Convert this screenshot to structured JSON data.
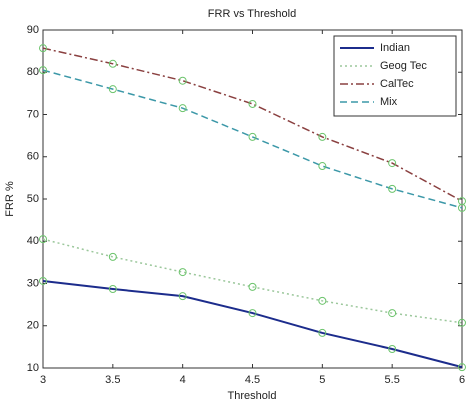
{
  "chart_data": {
    "type": "line",
    "title": "FRR vs Threshold",
    "xlabel": "Threshold",
    "ylabel": "FRR %",
    "x": [
      3,
      3.5,
      4,
      4.5,
      5,
      5.5,
      6
    ],
    "xlim": [
      3,
      6
    ],
    "xticks": [
      3,
      3.5,
      4,
      4.5,
      5,
      5.5,
      6
    ],
    "ylim": [
      10,
      90
    ],
    "yticks": [
      10,
      20,
      30,
      40,
      50,
      60,
      70,
      80,
      90
    ],
    "legend": "top-right",
    "marker_color": "#6cc46c",
    "series": [
      {
        "name": "Indian",
        "color": "#1c2c8c",
        "dash": "none",
        "values": [
          30.6,
          28.7,
          27,
          23,
          18.3,
          14.5,
          10.2
        ]
      },
      {
        "name": "Geog Tec",
        "color": "#9bc79b",
        "dash": "2,3",
        "values": [
          40.5,
          36.3,
          32.7,
          29.2,
          25.9,
          23,
          20.7
        ]
      },
      {
        "name": "CalTec",
        "color": "#8a4040",
        "dash": "8,3,2,3",
        "values": [
          85.7,
          82,
          78,
          72.5,
          64.7,
          58.5,
          49.5
        ]
      },
      {
        "name": "Mix",
        "color": "#3c98a8",
        "dash": "7,4",
        "values": [
          80.5,
          76,
          71.5,
          64.7,
          57.8,
          52.4,
          47.9
        ]
      }
    ]
  }
}
